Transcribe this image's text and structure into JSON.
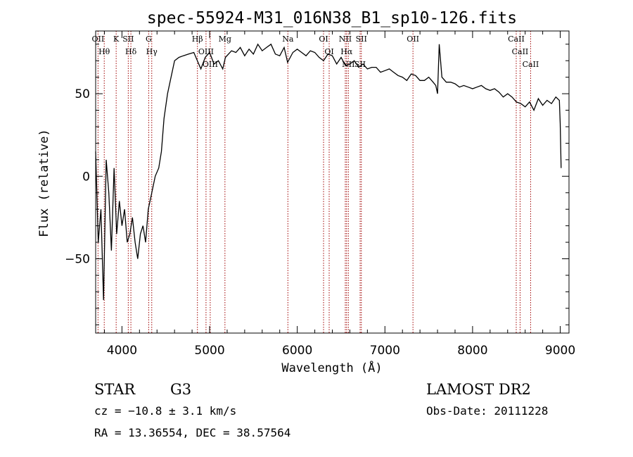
{
  "chart_data": {
    "type": "line",
    "title": "spec-55924-M31_016N38_B1_sp10-126.fits",
    "xlabel": "Wavelength (Å)",
    "ylabel": "Flux (relative)",
    "xlim": [
      3700,
      9100
    ],
    "ylim": [
      -95,
      88
    ],
    "x_ticks": [
      4000,
      5000,
      6000,
      7000,
      8000,
      9000
    ],
    "y_ticks": [
      -50,
      0,
      50
    ],
    "grid": false,
    "series": [
      {
        "x": [
          3700,
          3730,
          3760,
          3790,
          3820,
          3850,
          3880,
          3910,
          3940,
          3970,
          4000,
          4030,
          4060,
          4090,
          4120,
          4150,
          4180,
          4210,
          4240,
          4270,
          4300,
          4340,
          4380,
          4420,
          4450,
          4480,
          4520,
          4560,
          4600,
          4650,
          4700,
          4760,
          4820,
          4860,
          4900,
          4950,
          5000,
          5050,
          5100,
          5150,
          5180,
          5250,
          5300,
          5350,
          5400,
          5450,
          5500,
          5550,
          5600,
          5650,
          5700,
          5750,
          5800,
          5850,
          5890,
          5950,
          6000,
          6050,
          6100,
          6150,
          6200,
          6250,
          6300,
          6350,
          6400,
          6450,
          6500,
          6550,
          6600,
          6650,
          6700,
          6750,
          6800,
          6850,
          6900,
          6950,
          7000,
          7050,
          7100,
          7150,
          7200,
          7250,
          7300,
          7350,
          7400,
          7450,
          7500,
          7550,
          7580,
          7600,
          7620,
          7650,
          7700,
          7750,
          7800,
          7850,
          7900,
          7950,
          8000,
          8050,
          8100,
          8150,
          8200,
          8250,
          8300,
          8350,
          8400,
          8450,
          8500,
          8550,
          8600,
          8650,
          8700,
          8750,
          8800,
          8850,
          8900,
          8950,
          8990,
          9000,
          9010
        ],
        "y": [
          15,
          -40,
          -20,
          -75,
          10,
          -10,
          -45,
          5,
          -35,
          -15,
          -30,
          -20,
          -40,
          -35,
          -25,
          -40,
          -50,
          -35,
          -30,
          -40,
          -20,
          -10,
          0,
          5,
          15,
          35,
          50,
          60,
          70,
          72,
          73,
          74,
          75,
          70,
          65,
          72,
          75,
          68,
          70,
          65,
          72,
          76,
          75,
          78,
          73,
          77,
          74,
          80,
          76,
          78,
          80,
          74,
          73,
          78,
          69,
          75,
          77,
          75,
          73,
          76,
          75,
          72,
          70,
          74,
          73,
          68,
          72,
          67,
          68,
          70,
          66,
          68,
          65,
          66,
          66,
          63,
          64,
          65,
          63,
          61,
          60,
          58,
          62,
          61,
          58,
          58,
          60,
          57,
          55,
          50,
          80,
          60,
          57,
          57,
          56,
          54,
          55,
          54,
          53,
          54,
          55,
          53,
          52,
          53,
          51,
          48,
          50,
          48,
          45,
          44,
          42,
          45,
          40,
          47,
          43,
          46,
          44,
          48,
          46,
          32,
          5
        ]
      }
    ],
    "spectral_lines": [
      {
        "label": "Hθ",
        "x": 3798
      },
      {
        "label": "OII",
        "x": 3727
      },
      {
        "label": "K",
        "x": 3934
      },
      {
        "label": "Hδ",
        "x": 4102
      },
      {
        "label": "SII",
        "x": 4072
      },
      {
        "label": "Hγ",
        "x": 4340
      },
      {
        "label": "G",
        "x": 4305
      },
      {
        "label": "Hβ",
        "x": 4861
      },
      {
        "label": "OIII",
        "x": 4959
      },
      {
        "label": "OIII",
        "x": 5007
      },
      {
        "label": "Mg",
        "x": 5175
      },
      {
        "label": "Na",
        "x": 5893
      },
      {
        "label": "OI",
        "x": 6300
      },
      {
        "label": "OI",
        "x": 6364
      },
      {
        "label": "NII",
        "x": 6548
      },
      {
        "label": "Hα",
        "x": 6563
      },
      {
        "label": "NII",
        "x": 6583
      },
      {
        "label": "SII",
        "x": 6717
      },
      {
        "label": "SII",
        "x": 6731
      },
      {
        "label": "OII",
        "x": 7320
      },
      {
        "label": "CaII",
        "x": 8498
      },
      {
        "label": "CaII",
        "x": 8542
      },
      {
        "label": "CaII",
        "x": 8662
      }
    ]
  },
  "info": {
    "classification": "STAR",
    "subclass": "G3",
    "survey": "LAMOST DR2",
    "cz": "cz = −10.8 ± 3.1 km/s",
    "obs_date": "Obs-Date: 20111228",
    "coords": "RA =  13.36554, DEC =  38.57564"
  }
}
